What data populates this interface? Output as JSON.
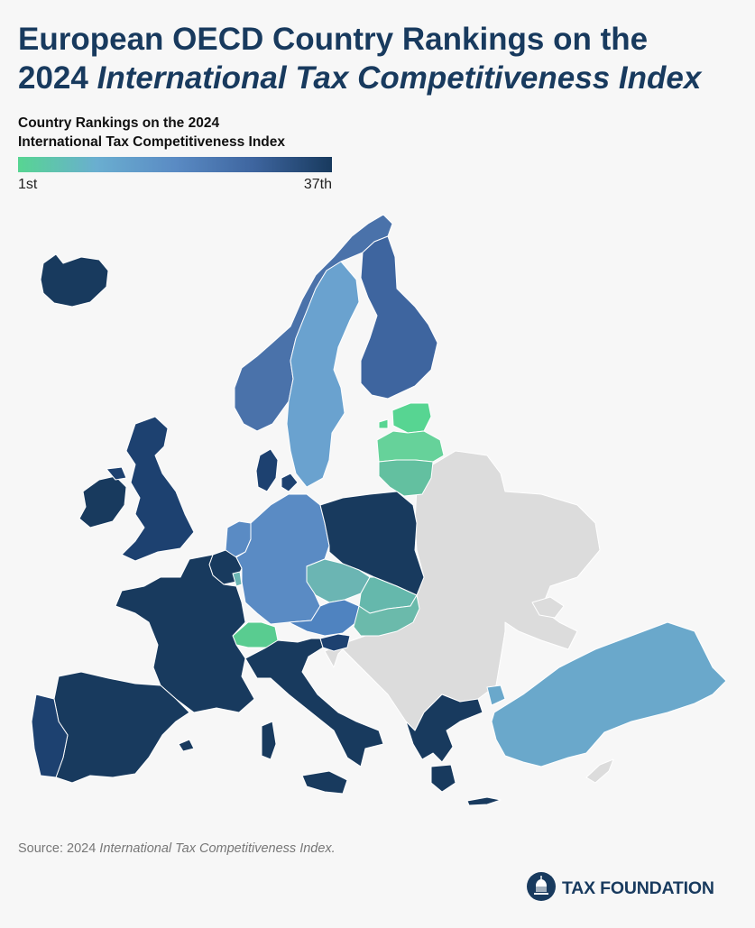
{
  "header": {
    "title_line1": "European OECD Country Rankings on the",
    "title_line2_plain": "2024 ",
    "title_line2_italic": "International Tax Competitiveness Index"
  },
  "legend": {
    "title_line1": "Country Rankings on the 2024",
    "title_line2": "International Tax Competitiveness Index",
    "min_label": "1st",
    "max_label": "37th",
    "colors": [
      "#57d592",
      "#6aaed0",
      "#5a8bc4",
      "#3e659f",
      "#183a5e"
    ]
  },
  "map": {
    "non_oecd_color": "#dcdcdc",
    "border_color": "#ffffff",
    "regions": [
      {
        "id": "iceland",
        "color": "#183a5e"
      },
      {
        "id": "ireland",
        "color": "#183a5e"
      },
      {
        "id": "united-kingdom",
        "color": "#1d4170"
      },
      {
        "id": "norway",
        "color": "#4a72aa"
      },
      {
        "id": "sweden",
        "color": "#6aa2cf"
      },
      {
        "id": "finland",
        "color": "#3e659f"
      },
      {
        "id": "estonia",
        "color": "#57d592"
      },
      {
        "id": "latvia",
        "color": "#66d29a"
      },
      {
        "id": "lithuania",
        "color": "#63c0a0"
      },
      {
        "id": "denmark",
        "color": "#1d4170"
      },
      {
        "id": "netherlands",
        "color": "#5a8bc4"
      },
      {
        "id": "belgium",
        "color": "#183a5e"
      },
      {
        "id": "germany",
        "color": "#5a8bc4"
      },
      {
        "id": "poland",
        "color": "#183a5e"
      },
      {
        "id": "czechia",
        "color": "#6bb5b3"
      },
      {
        "id": "slovakia",
        "color": "#65b8ac"
      },
      {
        "id": "austria",
        "color": "#4f83c0"
      },
      {
        "id": "hungary",
        "color": "#6bbaab"
      },
      {
        "id": "switzerland",
        "color": "#59cc90"
      },
      {
        "id": "france",
        "color": "#183a5e"
      },
      {
        "id": "spain",
        "color": "#183a5e"
      },
      {
        "id": "portugal",
        "color": "#1d4170"
      },
      {
        "id": "italy",
        "color": "#183a5e"
      },
      {
        "id": "slovenia",
        "color": "#1d4170"
      },
      {
        "id": "greece",
        "color": "#183a5e"
      },
      {
        "id": "turkey",
        "color": "#6aa8cb"
      },
      {
        "id": "luxembourg",
        "color": "#6bb5b3"
      }
    ]
  },
  "footer": {
    "source_prefix": "Source: 2024 ",
    "source_italic": "International Tax Competitiveness Index.",
    "logo_text": "TAX FOUNDATION"
  }
}
